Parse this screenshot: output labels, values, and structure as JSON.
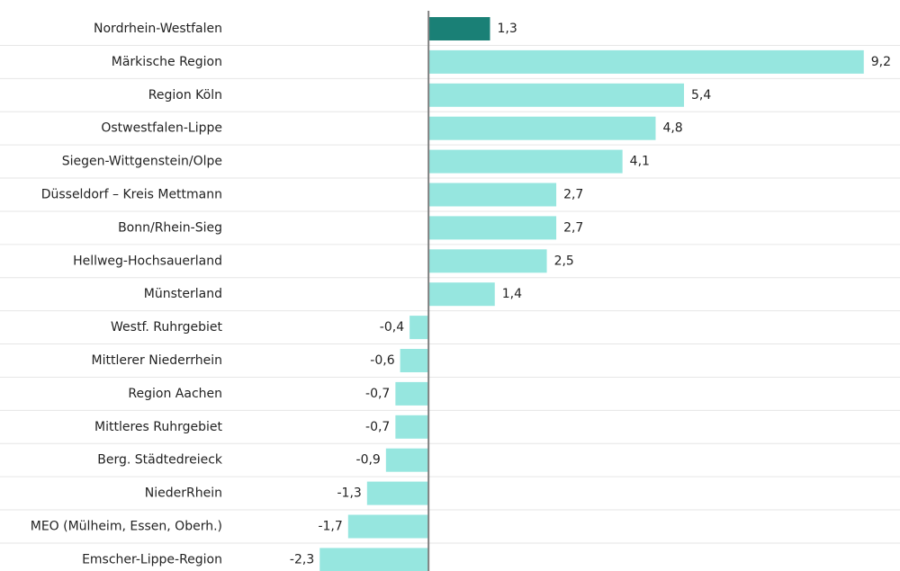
{
  "chart_data": {
    "type": "barh",
    "categories": [
      "Nordrhein-Westfalen",
      "Märkische Region",
      "Region Köln",
      "Ostwestfalen-Lippe",
      "Siegen-Wittgenstein/Olpe",
      "Düsseldorf – Kreis Mettmann",
      "Bonn/Rhein-Sieg",
      "Hellweg-Hochsauerland",
      "Münsterland",
      "Westf. Ruhrgebiet",
      "Mittlerer Niederrhein",
      "Region Aachen",
      "Mittleres Ruhrgebiet",
      "Berg. Städtedreieck",
      "NiederRhein",
      "MEO (Mülheim, Essen, Oberh.)",
      "Emscher-Lippe-Region"
    ],
    "values": [
      1.3,
      9.2,
      5.4,
      4.8,
      4.1,
      2.7,
      2.7,
      2.5,
      1.4,
      -0.4,
      -0.6,
      -0.7,
      -0.7,
      -0.9,
      -1.3,
      -1.7,
      -2.3
    ],
    "value_labels": [
      "1,3",
      "9,2",
      "5,4",
      "4,8",
      "4,1",
      "2,7",
      "2,7",
      "2,5",
      "1,4",
      "-0,4",
      "-0,6",
      "-0,7",
      "-0,7",
      "-0,9",
      "-1,3",
      "-1,7",
      "-2,3"
    ],
    "colors": [
      "#1a8076",
      "#96e6df",
      "#96e6df",
      "#96e6df",
      "#96e6df",
      "#96e6df",
      "#96e6df",
      "#96e6df",
      "#96e6df",
      "#96e6df",
      "#96e6df",
      "#96e6df",
      "#96e6df",
      "#96e6df",
      "#96e6df",
      "#96e6df",
      "#96e6df"
    ],
    "xlim": [
      -2.4,
      9.3
    ]
  }
}
